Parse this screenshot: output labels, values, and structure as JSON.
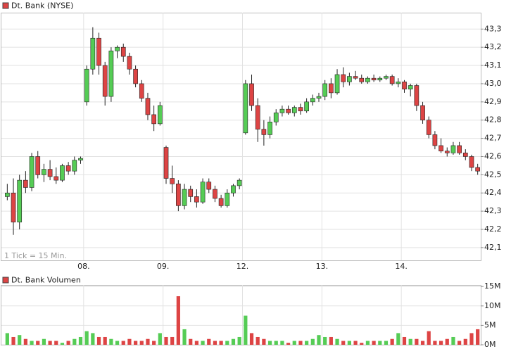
{
  "chart_data": [
    {
      "type": "candlestick",
      "title": "Dt. Bank (NYSE)",
      "note": "1 Tick = 15 Min.",
      "up_color": "#55cc55",
      "down_color": "#dd4444",
      "grid": true,
      "ylim": [
        42.03,
        43.39
      ],
      "yticks": [
        {
          "value": 42.1,
          "label": "42,1"
        },
        {
          "value": 42.2,
          "label": "42,2"
        },
        {
          "value": 42.3,
          "label": "42,3"
        },
        {
          "value": 42.4,
          "label": "42,4"
        },
        {
          "value": 42.5,
          "label": "42,5"
        },
        {
          "value": 42.6,
          "label": "42,6"
        },
        {
          "value": 42.7,
          "label": "42,7"
        },
        {
          "value": 42.8,
          "label": "42,8"
        },
        {
          "value": 42.9,
          "label": "42,9"
        },
        {
          "value": 43.0,
          "label": "43,0"
        },
        {
          "value": 43.1,
          "label": "43,1"
        },
        {
          "value": 43.2,
          "label": "43,2"
        },
        {
          "value": 43.3,
          "label": "43,3"
        }
      ],
      "categories": [
        null,
        null,
        null,
        null,
        null,
        null,
        null,
        null,
        null,
        null,
        null,
        null,
        null,
        "08.",
        null,
        null,
        null,
        null,
        null,
        null,
        null,
        null,
        null,
        null,
        null,
        null,
        "09.",
        null,
        null,
        null,
        null,
        null,
        null,
        null,
        null,
        null,
        null,
        null,
        null,
        "12.",
        null,
        null,
        null,
        null,
        null,
        null,
        null,
        null,
        null,
        null,
        null,
        null,
        "13.",
        null,
        null,
        null,
        null,
        null,
        null,
        null,
        null,
        null,
        null,
        null,
        null,
        "14.",
        null,
        null,
        null,
        null,
        null,
        null,
        null,
        null,
        null,
        null,
        null,
        null
      ],
      "ohlc": [
        [
          42.38,
          42.45,
          42.36,
          42.4
        ],
        [
          42.4,
          42.48,
          42.17,
          42.24
        ],
        [
          42.24,
          42.5,
          42.2,
          42.47
        ],
        [
          42.47,
          42.52,
          42.4,
          42.43
        ],
        [
          42.43,
          42.62,
          42.41,
          42.6
        ],
        [
          42.6,
          42.63,
          42.48,
          42.5
        ],
        [
          42.5,
          42.56,
          42.46,
          42.53
        ],
        [
          42.53,
          42.58,
          42.47,
          42.49
        ],
        [
          42.49,
          42.54,
          42.45,
          42.47
        ],
        [
          42.47,
          42.56,
          42.46,
          42.55
        ],
        [
          42.55,
          42.57,
          42.5,
          42.52
        ],
        [
          42.52,
          42.6,
          42.5,
          42.58
        ],
        [
          42.58,
          42.6,
          42.56,
          42.59
        ],
        [
          42.9,
          43.1,
          42.88,
          43.08
        ],
        [
          43.08,
          43.31,
          43.05,
          43.25
        ],
        [
          43.25,
          43.28,
          43.05,
          43.1
        ],
        [
          43.1,
          43.12,
          42.88,
          42.93
        ],
        [
          42.93,
          43.2,
          42.9,
          43.18
        ],
        [
          43.18,
          43.21,
          43.14,
          43.2
        ],
        [
          43.2,
          43.22,
          43.12,
          43.15
        ],
        [
          43.15,
          43.17,
          43.05,
          43.08
        ],
        [
          43.08,
          43.1,
          42.98,
          43.0
        ],
        [
          43.0,
          43.02,
          42.9,
          42.92
        ],
        [
          42.92,
          42.95,
          42.8,
          42.83
        ],
        [
          42.83,
          42.88,
          42.74,
          42.78
        ],
        [
          42.78,
          42.9,
          42.77,
          42.88
        ],
        [
          42.65,
          42.66,
          42.45,
          42.48
        ],
        [
          42.48,
          42.55,
          42.4,
          42.45
        ],
        [
          42.45,
          42.47,
          42.3,
          42.33
        ],
        [
          42.33,
          42.45,
          42.31,
          42.42
        ],
        [
          42.42,
          42.44,
          42.35,
          42.38
        ],
        [
          42.38,
          42.42,
          42.32,
          42.35
        ],
        [
          42.35,
          42.48,
          42.34,
          42.46
        ],
        [
          42.46,
          42.48,
          42.4,
          42.42
        ],
        [
          42.42,
          42.44,
          42.35,
          42.37
        ],
        [
          42.37,
          42.39,
          42.32,
          42.33
        ],
        [
          42.33,
          42.42,
          42.32,
          42.4
        ],
        [
          42.4,
          42.45,
          42.38,
          42.44
        ],
        [
          42.44,
          42.48,
          42.42,
          42.47
        ],
        [
          42.73,
          43.02,
          42.72,
          43.0
        ],
        [
          43.0,
          43.05,
          42.85,
          42.88
        ],
        [
          42.88,
          42.92,
          42.68,
          42.75
        ],
        [
          42.75,
          42.8,
          42.66,
          42.72
        ],
        [
          42.72,
          42.82,
          42.7,
          42.79
        ],
        [
          42.79,
          42.86,
          42.77,
          42.84
        ],
        [
          42.84,
          42.88,
          42.82,
          42.86
        ],
        [
          42.86,
          42.88,
          42.83,
          42.84
        ],
        [
          42.84,
          42.88,
          42.82,
          42.87
        ],
        [
          42.87,
          42.89,
          42.83,
          42.85
        ],
        [
          42.85,
          42.92,
          42.84,
          42.9
        ],
        [
          42.9,
          42.94,
          42.88,
          42.92
        ],
        [
          42.92,
          42.95,
          42.9,
          42.93
        ],
        [
          42.93,
          43.02,
          42.91,
          43.0
        ],
        [
          43.0,
          43.03,
          42.92,
          42.95
        ],
        [
          42.95,
          43.08,
          42.94,
          43.05
        ],
        [
          43.05,
          43.09,
          42.98,
          43.01
        ],
        [
          43.01,
          43.06,
          42.99,
          43.04
        ],
        [
          43.04,
          43.07,
          43.02,
          43.03
        ],
        [
          43.03,
          43.05,
          43.0,
          43.01
        ],
        [
          43.01,
          43.04,
          43.0,
          43.03
        ],
        [
          43.03,
          43.05,
          43.01,
          43.02
        ],
        [
          43.02,
          43.04,
          43.01,
          43.03
        ],
        [
          43.03,
          43.05,
          43.02,
          43.04
        ],
        [
          43.04,
          43.05,
          42.99,
          43.0
        ],
        [
          43.0,
          43.03,
          42.98,
          43.01
        ],
        [
          43.01,
          43.02,
          42.95,
          42.97
        ],
        [
          42.97,
          43.0,
          42.93,
          42.99
        ],
        [
          42.99,
          43.0,
          42.85,
          42.88
        ],
        [
          42.88,
          42.9,
          42.78,
          42.8
        ],
        [
          42.8,
          42.82,
          42.7,
          42.72
        ],
        [
          42.72,
          42.74,
          42.64,
          42.66
        ],
        [
          42.66,
          42.7,
          42.62,
          42.63
        ],
        [
          42.63,
          42.65,
          42.6,
          42.62
        ],
        [
          42.62,
          42.68,
          42.61,
          42.66
        ],
        [
          42.66,
          42.68,
          42.61,
          42.62
        ],
        [
          42.62,
          42.64,
          42.58,
          42.6
        ],
        [
          42.6,
          42.61,
          42.52,
          42.54
        ],
        [
          42.54,
          42.56,
          42.5,
          42.52
        ]
      ]
    },
    {
      "type": "bar",
      "title": "Dt. Bank Volumen",
      "grid": true,
      "ylim": [
        0,
        15.4
      ],
      "yticks": [
        {
          "value": 0,
          "label": "0M"
        },
        {
          "value": 5,
          "label": "5M"
        },
        {
          "value": 10,
          "label": "10M"
        },
        {
          "value": 15,
          "label": "15M"
        }
      ],
      "values": [
        3,
        2,
        2.5,
        1.5,
        1,
        1,
        1.5,
        1,
        1,
        0.5,
        1,
        1.5,
        2,
        3.5,
        3,
        2,
        2,
        1.5,
        1,
        1,
        1.5,
        1,
        1,
        1.5,
        1,
        3,
        2,
        2,
        12.5,
        4,
        1.5,
        1,
        1,
        1.5,
        1,
        1,
        1,
        1.5,
        2,
        7.5,
        3,
        2,
        1.5,
        1,
        1,
        1,
        0.5,
        1,
        1,
        1,
        1.5,
        2.5,
        2,
        2,
        1.5,
        1,
        1,
        1,
        0.5,
        1,
        1,
        1,
        1,
        1.5,
        3,
        2,
        1.5,
        1.5,
        1,
        3.5,
        1,
        1,
        1.5,
        2,
        1,
        1.5,
        3,
        4
      ]
    }
  ]
}
